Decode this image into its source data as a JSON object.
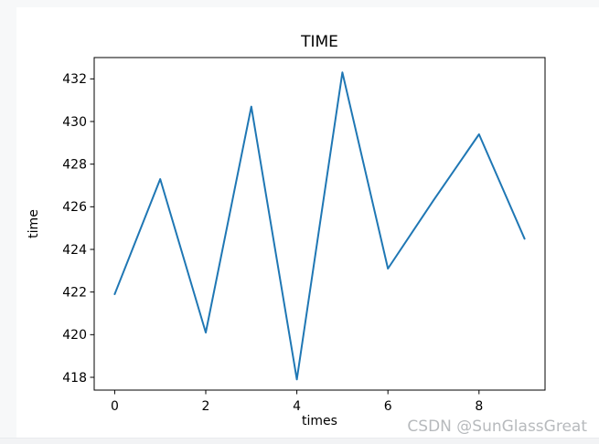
{
  "page": {
    "background_color": "#f7f8f9",
    "figure_background": "#ffffff",
    "watermark": "CSDN @SunGlassGreat",
    "watermark_color": "#b7babd"
  },
  "chart_data": {
    "type": "line",
    "title": "TIME",
    "xlabel": "times",
    "ylabel": "time",
    "x": [
      0,
      1,
      2,
      3,
      4,
      5,
      6,
      7,
      8,
      9
    ],
    "series": [
      {
        "name": "time",
        "values": [
          421.9,
          427.3,
          420.1,
          430.7,
          417.9,
          432.3,
          423.1,
          426.3,
          429.4,
          424.5
        ],
        "color": "#1f77b4"
      }
    ],
    "xticks": [
      0,
      2,
      4,
      6,
      8
    ],
    "yticks": [
      418,
      420,
      422,
      424,
      426,
      428,
      430,
      432
    ],
    "xlim": [
      -0.45,
      9.45
    ],
    "ylim": [
      417.4,
      433.0
    ],
    "grid": false,
    "legend": "none",
    "axis_color": "#000000",
    "tick_label_color": "#000000"
  }
}
